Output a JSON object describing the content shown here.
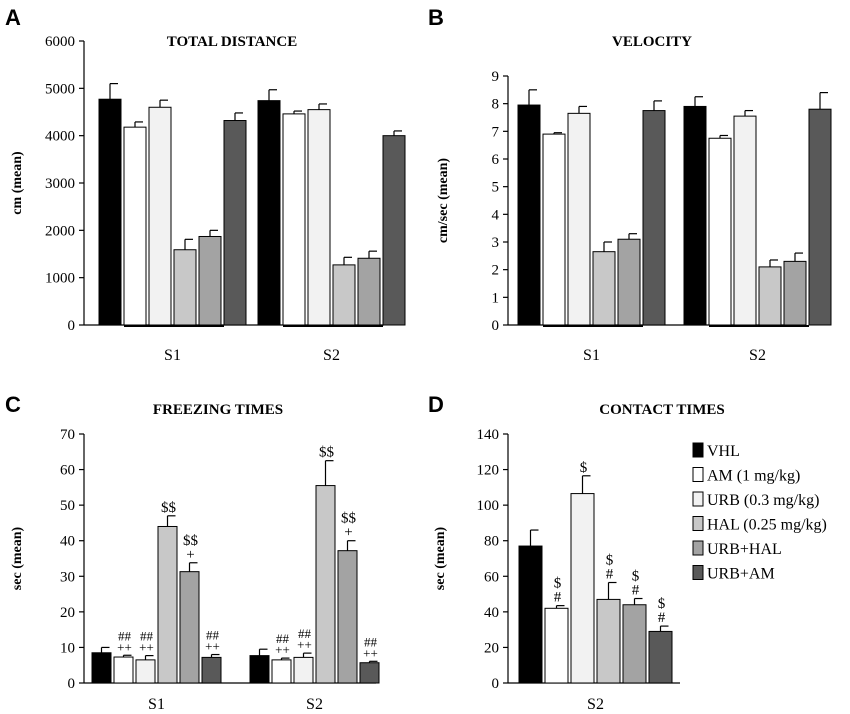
{
  "legend": {
    "items": [
      {
        "name": "VHL",
        "color": "#000000"
      },
      {
        "name": "AM   (1 mg/kg)",
        "color": "#ffffff"
      },
      {
        "name": "URB (0.3 mg/kg)",
        "color": "#f2f2f2"
      },
      {
        "name": "HAL (0.25 mg/kg)",
        "color": "#c8c8c8"
      },
      {
        "name": "URB+HAL",
        "color": "#a3a3a3"
      },
      {
        "name": "URB+AM",
        "color": "#595959"
      }
    ]
  },
  "chart_data": [
    {
      "panel": "A",
      "type": "bar",
      "title": "TOTAL DISTANCE",
      "ylabel": "cm (mean)",
      "xlabel": "",
      "ylim": [
        0,
        6000
      ],
      "yticks": [
        0,
        1000,
        2000,
        3000,
        4000,
        5000,
        6000
      ],
      "categories": [
        "S1",
        "S2"
      ],
      "series": [
        {
          "name": "VHL",
          "values": [
            4770,
            4740
          ],
          "errors": [
            330,
            230
          ],
          "annotations": [
            "",
            ""
          ]
        },
        {
          "name": "AM",
          "values": [
            4180,
            4460
          ],
          "errors": [
            110,
            60
          ],
          "annotations": [
            "",
            ""
          ]
        },
        {
          "name": "URB",
          "values": [
            4600,
            4550
          ],
          "errors": [
            150,
            120
          ],
          "annotations": [
            "",
            ""
          ]
        },
        {
          "name": "HAL",
          "values": [
            1590,
            1270
          ],
          "errors": [
            220,
            160
          ],
          "annotations": [
            "",
            ""
          ]
        },
        {
          "name": "URB+HAL",
          "values": [
            1870,
            1410
          ],
          "errors": [
            130,
            150
          ],
          "annotations": [
            "",
            ""
          ]
        },
        {
          "name": "URB+AM",
          "values": [
            4320,
            4000
          ],
          "errors": [
            160,
            100
          ],
          "annotations": [
            "",
            ""
          ]
        }
      ]
    },
    {
      "panel": "B",
      "type": "bar",
      "title": "VELOCITY",
      "ylabel": "cm/sec (mean)",
      "xlabel": "",
      "ylim": [
        0,
        9
      ],
      "yticks": [
        0,
        1,
        2,
        3,
        4,
        5,
        6,
        7,
        8,
        9
      ],
      "categories": [
        "S1",
        "S2"
      ],
      "series": [
        {
          "name": "VHL",
          "values": [
            7.95,
            7.9
          ],
          "errors": [
            0.55,
            0.35
          ],
          "annotations": [
            "",
            ""
          ]
        },
        {
          "name": "AM",
          "values": [
            6.9,
            6.75
          ],
          "errors": [
            0.05,
            0.1
          ],
          "annotations": [
            "",
            ""
          ]
        },
        {
          "name": "URB",
          "values": [
            7.65,
            7.55
          ],
          "errors": [
            0.25,
            0.2
          ],
          "annotations": [
            "",
            ""
          ]
        },
        {
          "name": "HAL",
          "values": [
            2.65,
            2.1
          ],
          "errors": [
            0.35,
            0.25
          ],
          "annotations": [
            "",
            ""
          ]
        },
        {
          "name": "URB+HAL",
          "values": [
            3.1,
            2.3
          ],
          "errors": [
            0.2,
            0.3
          ],
          "annotations": [
            "",
            ""
          ]
        },
        {
          "name": "URB+AM",
          "values": [
            7.75,
            7.8
          ],
          "errors": [
            0.35,
            0.6
          ],
          "annotations": [
            "",
            ""
          ]
        }
      ]
    },
    {
      "panel": "C",
      "type": "bar",
      "title": "FREEZING TIMES",
      "ylabel": "sec (mean)",
      "xlabel": "",
      "ylim": [
        0,
        70
      ],
      "yticks": [
        0,
        10,
        20,
        30,
        40,
        50,
        60,
        70
      ],
      "categories": [
        "S1",
        "S2"
      ],
      "series": [
        {
          "name": "VHL",
          "values": [
            8.5,
            7.7
          ],
          "errors": [
            1.5,
            1.8
          ],
          "annotations": [
            "",
            ""
          ]
        },
        {
          "name": "AM",
          "values": [
            7.3,
            6.5
          ],
          "errors": [
            0.5,
            0.5
          ],
          "annotations": [
            "##\n++",
            "##\n++"
          ]
        },
        {
          "name": "URB",
          "values": [
            6.5,
            7.2
          ],
          "errors": [
            1.2,
            1.2
          ],
          "annotations": [
            "##\n++",
            "##\n++"
          ]
        },
        {
          "name": "HAL",
          "values": [
            44.0,
            55.5
          ],
          "errors": [
            3.0,
            7.0
          ],
          "annotations": [
            "$$",
            "$$"
          ]
        },
        {
          "name": "URB+HAL",
          "values": [
            31.3,
            37.2
          ],
          "errors": [
            2.5,
            2.8
          ],
          "annotations": [
            "$$\n+",
            "$$\n+"
          ]
        },
        {
          "name": "URB+AM",
          "values": [
            7.2,
            5.7
          ],
          "errors": [
            0.8,
            0.4
          ],
          "annotations": [
            "##\n++",
            "##\n++"
          ]
        }
      ]
    },
    {
      "panel": "D",
      "type": "bar",
      "title": "CONTACT TIMES",
      "ylabel": "sec (mean)",
      "xlabel": "",
      "ylim": [
        0,
        140
      ],
      "yticks": [
        0,
        20,
        40,
        60,
        80,
        100,
        120,
        140
      ],
      "categories": [
        "S2"
      ],
      "series": [
        {
          "name": "VHL",
          "values": [
            77
          ],
          "errors": [
            9
          ],
          "annotations": [
            ""
          ]
        },
        {
          "name": "AM",
          "values": [
            42
          ],
          "errors": [
            1.5
          ],
          "annotations": [
            "$\n#"
          ]
        },
        {
          "name": "URB",
          "values": [
            106.5
          ],
          "errors": [
            10
          ],
          "annotations": [
            "$"
          ]
        },
        {
          "name": "HAL",
          "values": [
            47
          ],
          "errors": [
            9.5
          ],
          "annotations": [
            "$\n#"
          ]
        },
        {
          "name": "URB+HAL",
          "values": [
            44
          ],
          "errors": [
            3.5
          ],
          "annotations": [
            "$\n#"
          ]
        },
        {
          "name": "URB+AM",
          "values": [
            29
          ],
          "errors": [
            3
          ],
          "annotations": [
            "$\n#"
          ]
        }
      ]
    }
  ]
}
